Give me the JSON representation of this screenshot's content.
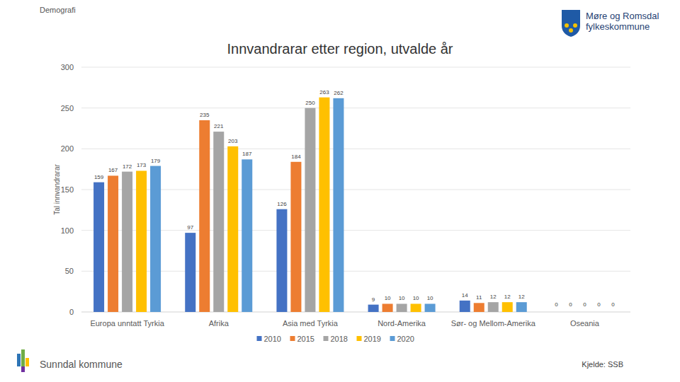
{
  "page": {
    "section": "Demografi",
    "logo_text": [
      "Møre og Romsdal",
      "fylkeskommune"
    ],
    "footer": "Sunndal kommune"
  },
  "chart_data": {
    "type": "bar",
    "title": "Innvandrarar etter region, utvalde år",
    "y_label": "Tal innvandrarar",
    "source": "Kjelde: SSB",
    "categories": [
      "Europa unntatt Tyrkia",
      "Afrika",
      "Asia med Tyrkia",
      "Nord-Amerika",
      "Sør- og Mellom-Amerika",
      "Oseania"
    ],
    "series": [
      {
        "name": "2010",
        "color": "#4472c4",
        "values": [
          159,
          97,
          126,
          9,
          14,
          0
        ]
      },
      {
        "name": "2015",
        "color": "#ed7d31",
        "values": [
          167,
          235,
          184,
          10,
          11,
          0
        ]
      },
      {
        "name": "2018",
        "color": "#a5a5a5",
        "values": [
          172,
          221,
          250,
          10,
          12,
          0
        ]
      },
      {
        "name": "2019",
        "color": "#ffc000",
        "values": [
          173,
          203,
          263,
          10,
          12,
          0
        ]
      },
      {
        "name": "2020",
        "color": "#5b9bd5",
        "values": [
          179,
          187,
          262,
          10,
          12,
          0
        ]
      }
    ],
    "ylim": [
      0,
      300
    ],
    "yticks": [
      0,
      50,
      100,
      150,
      200,
      250,
      300
    ],
    "grid": true,
    "data_labels": true,
    "legend": "bottom"
  }
}
